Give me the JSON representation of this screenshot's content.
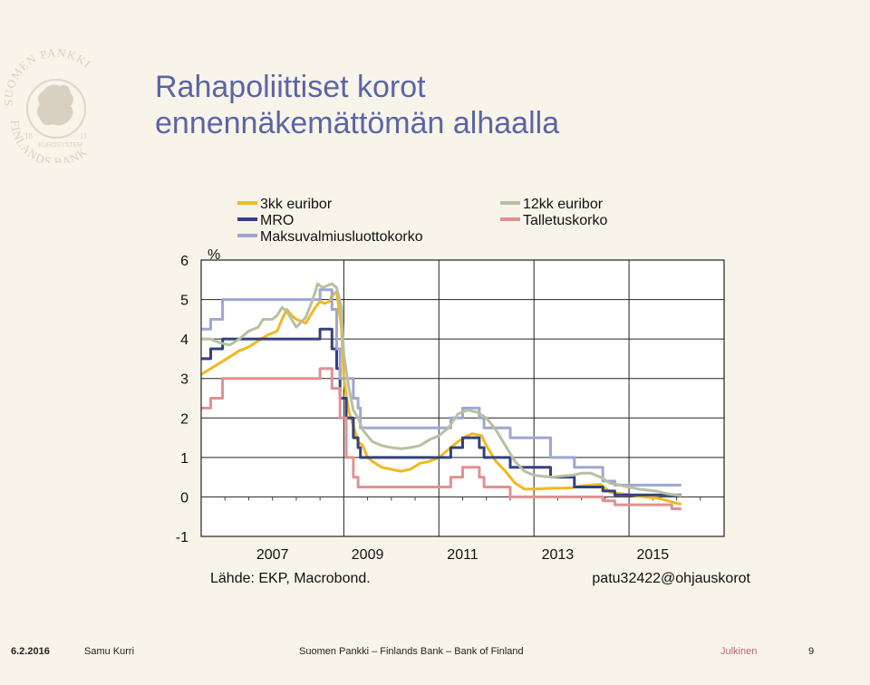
{
  "slide": {
    "title_line1": "Rahapoliittiset korot",
    "title_line2": "ennennäkemättömän alhaalla",
    "logo": {
      "text_top": "SUOMEN PANKKI",
      "text_bottom": "FINLANDS BANK",
      "text_band": "EUROSYSTEM",
      "year_left": "18",
      "year_right": "11"
    }
  },
  "footer": {
    "date": "6.2.2016",
    "author": "Samu Kurri",
    "org": "Suomen Pankki – Finlands Bank – Bank of Finland",
    "classification": "Julkinen",
    "page": "9",
    "classification_color": "#c0657d"
  },
  "chart_data": {
    "type": "line",
    "title": "",
    "ylabel": "%",
    "xlabel": "",
    "ylim": [
      -1,
      6
    ],
    "xlim": [
      2006.0,
      2017.0
    ],
    "yticks": [
      -1,
      0,
      1,
      2,
      3,
      4,
      5,
      6
    ],
    "xticks": [
      2007,
      2009,
      2011,
      2013,
      2015
    ],
    "grid": true,
    "legend": "top",
    "source": "Lähde: EKP, Macrobond.",
    "code": "patu32422@ohjauskorot",
    "series": [
      {
        "name": "3kk euribor",
        "color": "#f2b820",
        "points": [
          [
            2006.0,
            3.1
          ],
          [
            2006.2,
            3.25
          ],
          [
            2006.4,
            3.4
          ],
          [
            2006.6,
            3.55
          ],
          [
            2006.8,
            3.7
          ],
          [
            2007.0,
            3.8
          ],
          [
            2007.2,
            3.95
          ],
          [
            2007.4,
            4.1
          ],
          [
            2007.6,
            4.2
          ],
          [
            2007.7,
            4.5
          ],
          [
            2007.8,
            4.75
          ],
          [
            2007.9,
            4.6
          ],
          [
            2008.0,
            4.5
          ],
          [
            2008.2,
            4.4
          ],
          [
            2008.4,
            4.8
          ],
          [
            2008.5,
            4.95
          ],
          [
            2008.6,
            4.9
          ],
          [
            2008.7,
            4.95
          ],
          [
            2008.75,
            5.1
          ],
          [
            2008.85,
            5.2
          ],
          [
            2008.95,
            4.3
          ],
          [
            2009.0,
            3.0
          ],
          [
            2009.1,
            2.2
          ],
          [
            2009.2,
            1.8
          ],
          [
            2009.3,
            1.4
          ],
          [
            2009.4,
            1.3
          ],
          [
            2009.5,
            1.0
          ],
          [
            2009.6,
            0.9
          ],
          [
            2009.8,
            0.75
          ],
          [
            2010.0,
            0.7
          ],
          [
            2010.2,
            0.65
          ],
          [
            2010.4,
            0.7
          ],
          [
            2010.6,
            0.85
          ],
          [
            2010.8,
            0.9
          ],
          [
            2011.0,
            1.0
          ],
          [
            2011.2,
            1.2
          ],
          [
            2011.4,
            1.4
          ],
          [
            2011.6,
            1.55
          ],
          [
            2011.7,
            1.6
          ],
          [
            2011.9,
            1.55
          ],
          [
            2012.0,
            1.3
          ],
          [
            2012.2,
            0.9
          ],
          [
            2012.4,
            0.65
          ],
          [
            2012.6,
            0.35
          ],
          [
            2012.8,
            0.2
          ],
          [
            2013.0,
            0.2
          ],
          [
            2013.2,
            0.21
          ],
          [
            2013.4,
            0.22
          ],
          [
            2013.6,
            0.22
          ],
          [
            2013.8,
            0.23
          ],
          [
            2014.0,
            0.28
          ],
          [
            2014.2,
            0.3
          ],
          [
            2014.4,
            0.32
          ],
          [
            2014.5,
            0.22
          ],
          [
            2014.6,
            0.12
          ],
          [
            2014.8,
            0.08
          ],
          [
            2015.0,
            0.06
          ],
          [
            2015.2,
            0.02
          ],
          [
            2015.4,
            -0.01
          ],
          [
            2015.6,
            -0.03
          ],
          [
            2015.8,
            -0.09
          ],
          [
            2016.0,
            -0.16
          ],
          [
            2016.1,
            -0.18
          ]
        ]
      },
      {
        "name": "MRO",
        "color": "#35417d",
        "points": [
          [
            2006.0,
            3.5
          ],
          [
            2006.2,
            3.5
          ],
          [
            2006.2,
            3.75
          ],
          [
            2006.45,
            3.75
          ],
          [
            2006.45,
            4.0
          ],
          [
            2007.2,
            4.0
          ],
          [
            2007.2,
            4.0
          ],
          [
            2007.45,
            4.0
          ],
          [
            2007.45,
            4.0
          ],
          [
            2008.5,
            4.0
          ],
          [
            2008.5,
            4.25
          ],
          [
            2008.75,
            4.25
          ],
          [
            2008.75,
            3.75
          ],
          [
            2008.85,
            3.75
          ],
          [
            2008.85,
            3.25
          ],
          [
            2008.92,
            3.25
          ],
          [
            2008.92,
            2.5
          ],
          [
            2009.05,
            2.5
          ],
          [
            2009.05,
            2.0
          ],
          [
            2009.2,
            2.0
          ],
          [
            2009.2,
            1.5
          ],
          [
            2009.3,
            1.5
          ],
          [
            2009.3,
            1.25
          ],
          [
            2009.35,
            1.25
          ],
          [
            2009.35,
            1.0
          ],
          [
            2011.25,
            1.0
          ],
          [
            2011.25,
            1.25
          ],
          [
            2011.5,
            1.25
          ],
          [
            2011.5,
            1.5
          ],
          [
            2011.85,
            1.5
          ],
          [
            2011.85,
            1.25
          ],
          [
            2011.95,
            1.25
          ],
          [
            2011.95,
            1.0
          ],
          [
            2012.5,
            1.0
          ],
          [
            2012.5,
            0.75
          ],
          [
            2013.35,
            0.75
          ],
          [
            2013.35,
            0.5
          ],
          [
            2013.85,
            0.5
          ],
          [
            2013.85,
            0.25
          ],
          [
            2014.45,
            0.25
          ],
          [
            2014.45,
            0.15
          ],
          [
            2014.7,
            0.15
          ],
          [
            2014.7,
            0.05
          ],
          [
            2016.1,
            0.05
          ]
        ]
      },
      {
        "name": "Maksuvalmiusluottokorko",
        "color": "#9da7d2",
        "points": [
          [
            2006.0,
            4.25
          ],
          [
            2006.2,
            4.25
          ],
          [
            2006.2,
            4.5
          ],
          [
            2006.45,
            4.5
          ],
          [
            2006.45,
            5.0
          ],
          [
            2007.45,
            5.0
          ],
          [
            2007.45,
            5.0
          ],
          [
            2008.5,
            5.0
          ],
          [
            2008.5,
            5.25
          ],
          [
            2008.75,
            5.25
          ],
          [
            2008.75,
            4.75
          ],
          [
            2008.85,
            4.75
          ],
          [
            2008.85,
            3.75
          ],
          [
            2008.92,
            3.75
          ],
          [
            2008.92,
            3.0
          ],
          [
            2009.05,
            3.0
          ],
          [
            2009.05,
            3.0
          ],
          [
            2009.2,
            3.0
          ],
          [
            2009.2,
            2.5
          ],
          [
            2009.3,
            2.5
          ],
          [
            2009.3,
            2.25
          ],
          [
            2009.35,
            2.25
          ],
          [
            2009.35,
            1.75
          ],
          [
            2011.25,
            1.75
          ],
          [
            2011.25,
            2.0
          ],
          [
            2011.5,
            2.0
          ],
          [
            2011.5,
            2.25
          ],
          [
            2011.85,
            2.25
          ],
          [
            2011.85,
            2.0
          ],
          [
            2011.95,
            2.0
          ],
          [
            2011.95,
            1.75
          ],
          [
            2012.5,
            1.75
          ],
          [
            2012.5,
            1.5
          ],
          [
            2013.35,
            1.5
          ],
          [
            2013.35,
            1.0
          ],
          [
            2013.85,
            1.0
          ],
          [
            2013.85,
            0.75
          ],
          [
            2014.45,
            0.75
          ],
          [
            2014.45,
            0.4
          ],
          [
            2014.7,
            0.4
          ],
          [
            2014.7,
            0.3
          ],
          [
            2016.1,
            0.3
          ]
        ]
      },
      {
        "name": "12kk euribor",
        "color": "#b5c1a2",
        "points": [
          [
            2006.0,
            4.0
          ],
          [
            2006.2,
            4.0
          ],
          [
            2006.4,
            3.9
          ],
          [
            2006.6,
            3.85
          ],
          [
            2006.8,
            4.0
          ],
          [
            2007.0,
            4.2
          ],
          [
            2007.2,
            4.3
          ],
          [
            2007.3,
            4.5
          ],
          [
            2007.5,
            4.5
          ],
          [
            2007.6,
            4.6
          ],
          [
            2007.7,
            4.8
          ],
          [
            2007.8,
            4.7
          ],
          [
            2007.9,
            4.5
          ],
          [
            2008.0,
            4.3
          ],
          [
            2008.2,
            4.55
          ],
          [
            2008.3,
            4.85
          ],
          [
            2008.4,
            5.2
          ],
          [
            2008.45,
            5.4
          ],
          [
            2008.55,
            5.3
          ],
          [
            2008.65,
            5.35
          ],
          [
            2008.75,
            5.4
          ],
          [
            2008.85,
            5.3
          ],
          [
            2008.95,
            4.8
          ],
          [
            2009.0,
            3.6
          ],
          [
            2009.1,
            2.8
          ],
          [
            2009.2,
            2.2
          ],
          [
            2009.3,
            2.0
          ],
          [
            2009.4,
            1.7
          ],
          [
            2009.6,
            1.4
          ],
          [
            2009.8,
            1.3
          ],
          [
            2010.0,
            1.25
          ],
          [
            2010.2,
            1.22
          ],
          [
            2010.4,
            1.25
          ],
          [
            2010.6,
            1.3
          ],
          [
            2010.8,
            1.45
          ],
          [
            2011.0,
            1.55
          ],
          [
            2011.2,
            1.75
          ],
          [
            2011.4,
            2.1
          ],
          [
            2011.6,
            2.2
          ],
          [
            2011.8,
            2.15
          ],
          [
            2012.0,
            2.0
          ],
          [
            2012.2,
            1.7
          ],
          [
            2012.4,
            1.3
          ],
          [
            2012.6,
            0.9
          ],
          [
            2012.8,
            0.65
          ],
          [
            2013.0,
            0.55
          ],
          [
            2013.2,
            0.52
          ],
          [
            2013.4,
            0.5
          ],
          [
            2013.6,
            0.53
          ],
          [
            2013.8,
            0.55
          ],
          [
            2014.0,
            0.6
          ],
          [
            2014.2,
            0.6
          ],
          [
            2014.4,
            0.5
          ],
          [
            2014.6,
            0.35
          ],
          [
            2014.8,
            0.3
          ],
          [
            2015.0,
            0.25
          ],
          [
            2015.2,
            0.2
          ],
          [
            2015.4,
            0.17
          ],
          [
            2015.6,
            0.14
          ],
          [
            2015.8,
            0.08
          ],
          [
            2016.0,
            0.05
          ],
          [
            2016.1,
            0.03
          ]
        ]
      },
      {
        "name": "Talletuskorko",
        "color": "#e29090",
        "points": [
          [
            2006.0,
            2.25
          ],
          [
            2006.2,
            2.25
          ],
          [
            2006.2,
            2.5
          ],
          [
            2006.45,
            2.5
          ],
          [
            2006.45,
            3.0
          ],
          [
            2007.45,
            3.0
          ],
          [
            2007.45,
            3.0
          ],
          [
            2008.5,
            3.0
          ],
          [
            2008.5,
            3.25
          ],
          [
            2008.75,
            3.25
          ],
          [
            2008.75,
            2.75
          ],
          [
            2008.85,
            2.75
          ],
          [
            2008.85,
            2.75
          ],
          [
            2008.92,
            2.75
          ],
          [
            2008.92,
            2.0
          ],
          [
            2009.05,
            2.0
          ],
          [
            2009.05,
            1.0
          ],
          [
            2009.2,
            1.0
          ],
          [
            2009.2,
            0.5
          ],
          [
            2009.3,
            0.5
          ],
          [
            2009.3,
            0.25
          ],
          [
            2011.25,
            0.25
          ],
          [
            2011.25,
            0.5
          ],
          [
            2011.5,
            0.5
          ],
          [
            2011.5,
            0.75
          ],
          [
            2011.85,
            0.75
          ],
          [
            2011.85,
            0.5
          ],
          [
            2011.95,
            0.5
          ],
          [
            2011.95,
            0.25
          ],
          [
            2012.5,
            0.25
          ],
          [
            2012.5,
            0.0
          ],
          [
            2014.45,
            0.0
          ],
          [
            2014.45,
            -0.1
          ],
          [
            2014.7,
            -0.1
          ],
          [
            2014.7,
            -0.2
          ],
          [
            2015.9,
            -0.2
          ],
          [
            2015.9,
            -0.3
          ],
          [
            2016.1,
            -0.3
          ]
        ]
      }
    ]
  }
}
